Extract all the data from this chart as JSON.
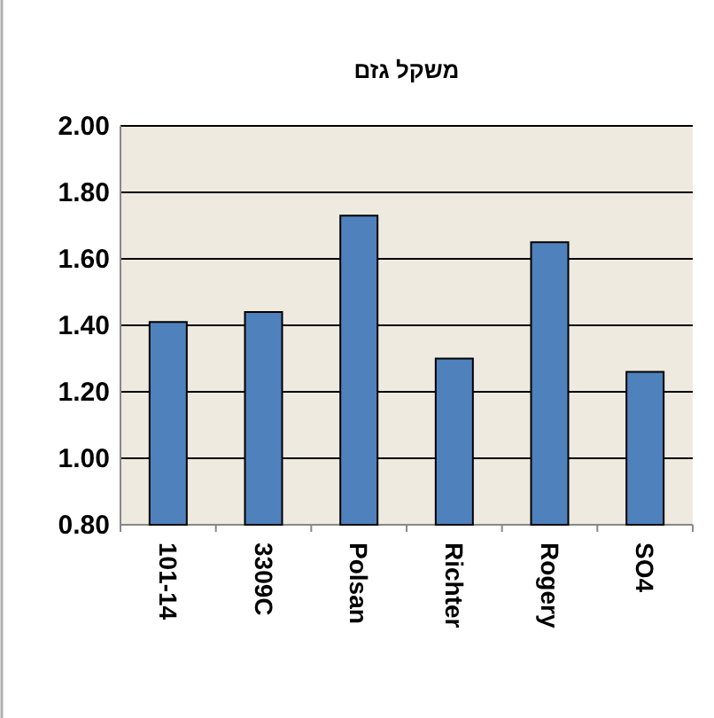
{
  "chart_data": {
    "type": "bar",
    "title": "משקל גזם",
    "categories": [
      "101-14",
      "3309C",
      "Polsan",
      "Richter",
      "Rogery",
      "SO4"
    ],
    "values": [
      1.41,
      1.44,
      1.73,
      1.3,
      1.65,
      1.26
    ],
    "color": "#4f81bd",
    "ylim": [
      0.8,
      2.0
    ],
    "yticks": [
      {
        "value": 0.8,
        "label": "0.80"
      },
      {
        "value": 1.0,
        "label": "1.00"
      },
      {
        "value": 1.2,
        "label": "1.20"
      },
      {
        "value": 1.4,
        "label": "1.40"
      },
      {
        "value": 1.6,
        "label": "1.60"
      },
      {
        "value": 1.8,
        "label": "1.80"
      },
      {
        "value": 2.0,
        "label": "2.00"
      }
    ],
    "grid": "y"
  }
}
